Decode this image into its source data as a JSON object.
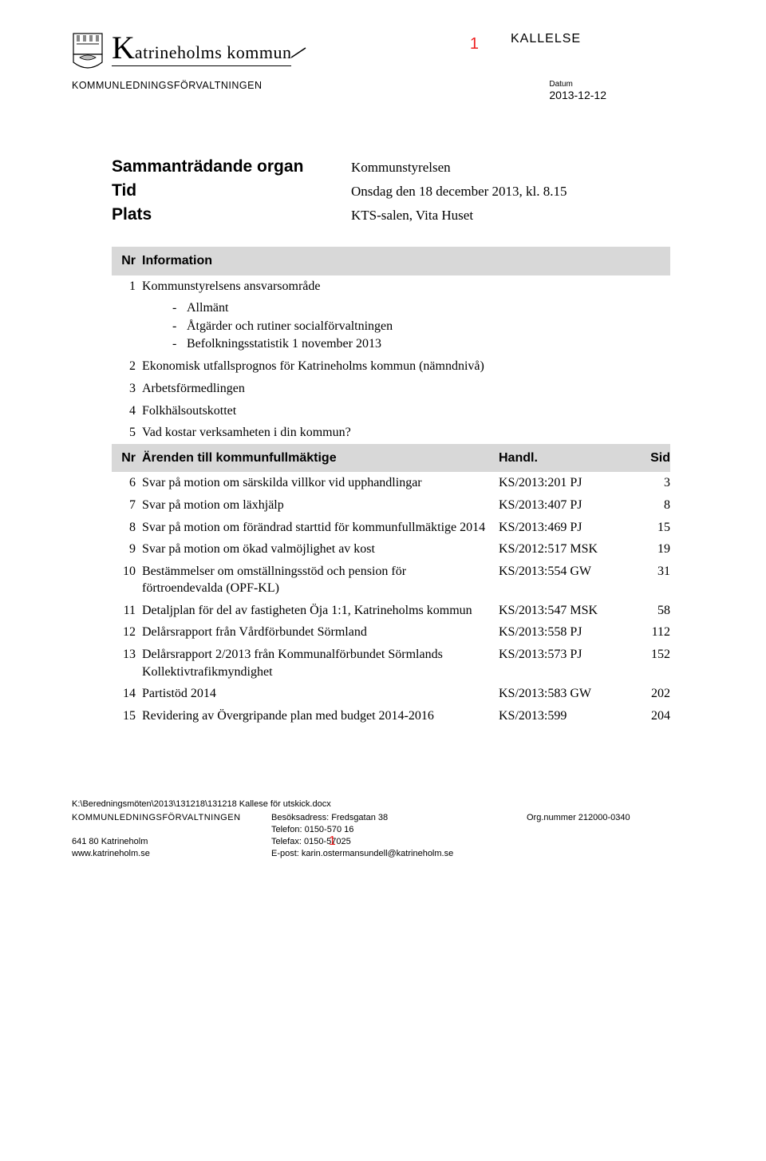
{
  "header": {
    "kommun_big": "K",
    "kommun_rest": "atrineholms kommun",
    "page_num_top": "1",
    "kallelse": "KALLELSE",
    "dept": "KOMMUNLEDNINGSFÖRVALTNINGEN",
    "date_label": "Datum",
    "date_value": "2013-12-12"
  },
  "meeting": {
    "organ_label": "Sammanträdande organ",
    "organ_value": "Kommunstyrelsen",
    "tid_label": "Tid",
    "tid_value": "Onsdag den 18 december 2013, kl. 8.15",
    "plats_label": "Plats",
    "plats_value": "KTS-salen, Vita Huset"
  },
  "section_info": {
    "nr_label": "Nr",
    "title_label": "Information",
    "items": [
      {
        "nr": "1",
        "title": "Kommunstyrelsens ansvarsområde"
      },
      {
        "nr": "2",
        "title": "Ekonomisk utfallsprognos för Katrineholms kommun (nämndnivå)"
      },
      {
        "nr": "3",
        "title": "Arbetsförmedlingen"
      },
      {
        "nr": "4",
        "title": "Folkhälsoutskottet"
      },
      {
        "nr": "5",
        "title": "Vad kostar verksamheten i din kommun?"
      }
    ],
    "sublist": [
      "Allmänt",
      "Åtgärder och rutiner socialförvaltningen",
      "Befolkningsstatistik 1 november 2013"
    ]
  },
  "section_arenden": {
    "nr_label": "Nr",
    "title_label": "Ärenden till kommunfullmäktige",
    "handl_label": "Handl.",
    "sid_label": "Sid",
    "items": [
      {
        "nr": "6",
        "title": "Svar på motion om särskilda villkor vid upphandlingar",
        "handl": "KS/2013:201 PJ",
        "sid": "3"
      },
      {
        "nr": "7",
        "title": "Svar på motion om läxhjälp",
        "handl": "KS/2013:407 PJ",
        "sid": "8"
      },
      {
        "nr": "8",
        "title": "Svar på motion om förändrad starttid för kommunfullmäktige 2014",
        "handl": "KS/2013:469 PJ",
        "sid": "15"
      },
      {
        "nr": "9",
        "title": "Svar på motion om ökad valmöjlighet av kost",
        "handl": "KS/2012:517 MSK",
        "sid": "19"
      },
      {
        "nr": "10",
        "title": "Bestämmelser om omställningsstöd och pension för förtroendevalda (OPF-KL)",
        "handl": "KS/2013:554 GW",
        "sid": "31"
      },
      {
        "nr": "11",
        "title": "Detaljplan för del av fastigheten Öja 1:1, Katrineholms kommun",
        "handl": "KS/2013:547 MSK",
        "sid": "58"
      },
      {
        "nr": "12",
        "title": "Delårsrapport från Vårdförbundet Sörmland",
        "handl": "KS/2013:558 PJ",
        "sid": "112"
      },
      {
        "nr": "13",
        "title": "Delårsrapport 2/2013 från Kommunalförbundet Sörmlands Kollektivtrafikmyndighet",
        "handl": "KS/2013:573 PJ",
        "sid": "152"
      },
      {
        "nr": "14",
        "title": "Partistöd 2014",
        "handl": "KS/2013:583 GW",
        "sid": "202"
      },
      {
        "nr": "15",
        "title": "Revidering av Övergripande plan med budget 2014-2016",
        "handl": "KS/2013:599",
        "sid": "204"
      }
    ]
  },
  "footer": {
    "path": "K:\\Beredningsmöten\\2013\\131218\\131218 Kallese för utskick.docx",
    "dept": "KOMMUNLEDNINGSFÖRVALTNINGEN",
    "addr_line1": "641 80  Katrineholm",
    "web": "www.katrineholm.se",
    "besok": "Besöksadress: Fredsgatan 38",
    "tel": "Telefon: 0150-570 16",
    "fax": "Telefax: 0150-57025",
    "email": "E-post: karin.ostermansundell@katrineholm.se",
    "org": "Org.nummer 212000-0340",
    "page_num_bottom": "1"
  },
  "colors": {
    "red": "#ee2020",
    "grey_header": "#d8d8d8"
  }
}
